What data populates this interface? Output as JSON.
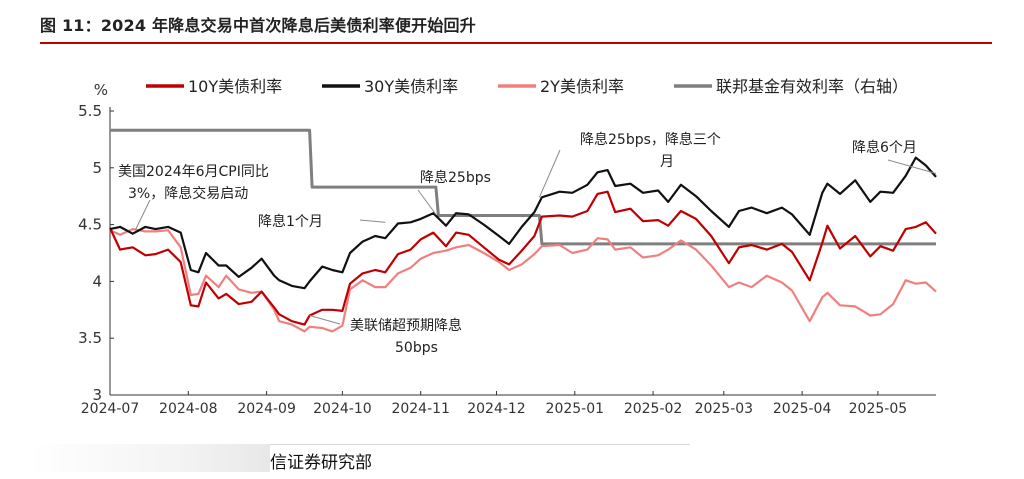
{
  "figure": {
    "title": "图 11：2024 年降息交易中首次降息后美债利率便开始回升",
    "source": "信证券研究部"
  },
  "chart_data": {
    "type": "line",
    "ylabel": "%",
    "ylim": [
      3,
      5.5
    ],
    "yticks": [
      "3",
      "3.5",
      "4",
      "4.5",
      "5",
      "5.5"
    ],
    "xlim": [
      "2024-07-01",
      "2025-05-24"
    ],
    "xticks": [
      "2024-07",
      "2024-08",
      "2024-09",
      "2024-10",
      "2024-11",
      "2024-12",
      "2025-01",
      "2025-02",
      "2025-03",
      "2025-04",
      "2025-05"
    ],
    "colors": {
      "10Y": "#c00000",
      "30Y": "#111111",
      "2Y": "#f08080",
      "fed": "#7f7f7f"
    },
    "series": [
      {
        "name": "10Y美债利率",
        "key": "10Y",
        "points": [
          [
            "2024-07-01",
            4.47
          ],
          [
            "2024-07-05",
            4.28
          ],
          [
            "2024-07-10",
            4.3
          ],
          [
            "2024-07-15",
            4.23
          ],
          [
            "2024-07-19",
            4.24
          ],
          [
            "2024-07-24",
            4.28
          ],
          [
            "2024-07-29",
            4.17
          ],
          [
            "2024-08-02",
            3.79
          ],
          [
            "2024-08-05",
            3.78
          ],
          [
            "2024-08-08",
            3.99
          ],
          [
            "2024-08-13",
            3.85
          ],
          [
            "2024-08-16",
            3.89
          ],
          [
            "2024-08-21",
            3.8
          ],
          [
            "2024-08-26",
            3.82
          ],
          [
            "2024-08-30",
            3.91
          ],
          [
            "2024-09-04",
            3.77
          ],
          [
            "2024-09-06",
            3.71
          ],
          [
            "2024-09-11",
            3.65
          ],
          [
            "2024-09-16",
            3.62
          ],
          [
            "2024-09-18",
            3.7
          ],
          [
            "2024-09-23",
            3.75
          ],
          [
            "2024-09-27",
            3.75
          ],
          [
            "2024-10-01",
            3.74
          ],
          [
            "2024-10-04",
            3.98
          ],
          [
            "2024-10-09",
            4.07
          ],
          [
            "2024-10-14",
            4.1
          ],
          [
            "2024-10-18",
            4.08
          ],
          [
            "2024-10-23",
            4.24
          ],
          [
            "2024-10-28",
            4.28
          ],
          [
            "2024-11-01",
            4.37
          ],
          [
            "2024-11-06",
            4.43
          ],
          [
            "2024-11-11",
            4.31
          ],
          [
            "2024-11-15",
            4.43
          ],
          [
            "2024-11-20",
            4.41
          ],
          [
            "2024-11-26",
            4.3
          ],
          [
            "2024-12-02",
            4.19
          ],
          [
            "2024-12-06",
            4.15
          ],
          [
            "2024-12-11",
            4.27
          ],
          [
            "2024-12-16",
            4.4
          ],
          [
            "2024-12-19",
            4.57
          ],
          [
            "2024-12-26",
            4.58
          ],
          [
            "2024-12-31",
            4.57
          ],
          [
            "2025-01-06",
            4.62
          ],
          [
            "2025-01-10",
            4.77
          ],
          [
            "2025-01-14",
            4.79
          ],
          [
            "2025-01-17",
            4.61
          ],
          [
            "2025-01-23",
            4.64
          ],
          [
            "2025-01-28",
            4.53
          ],
          [
            "2025-02-03",
            4.54
          ],
          [
            "2025-02-07",
            4.49
          ],
          [
            "2025-02-12",
            4.62
          ],
          [
            "2025-02-18",
            4.55
          ],
          [
            "2025-02-24",
            4.4
          ],
          [
            "2025-03-03",
            4.16
          ],
          [
            "2025-03-07",
            4.3
          ],
          [
            "2025-03-12",
            4.32
          ],
          [
            "2025-03-18",
            4.28
          ],
          [
            "2025-03-24",
            4.33
          ],
          [
            "2025-03-28",
            4.26
          ],
          [
            "2025-04-04",
            4.01
          ],
          [
            "2025-04-09",
            4.34
          ],
          [
            "2025-04-11",
            4.49
          ],
          [
            "2025-04-16",
            4.29
          ],
          [
            "2025-04-22",
            4.4
          ],
          [
            "2025-04-28",
            4.22
          ],
          [
            "2025-05-02",
            4.31
          ],
          [
            "2025-05-07",
            4.27
          ],
          [
            "2025-05-12",
            4.46
          ],
          [
            "2025-05-16",
            4.48
          ],
          [
            "2025-05-20",
            4.52
          ],
          [
            "2025-05-24",
            4.42
          ]
        ]
      },
      {
        "name": "30Y美债利率",
        "key": "30Y",
        "points": [
          [
            "2024-07-01",
            4.46
          ],
          [
            "2024-07-05",
            4.48
          ],
          [
            "2024-07-10",
            4.42
          ],
          [
            "2024-07-15",
            4.48
          ],
          [
            "2024-07-19",
            4.46
          ],
          [
            "2024-07-24",
            4.48
          ],
          [
            "2024-07-29",
            4.43
          ],
          [
            "2024-08-02",
            4.1
          ],
          [
            "2024-08-05",
            4.08
          ],
          [
            "2024-08-08",
            4.25
          ],
          [
            "2024-08-13",
            4.14
          ],
          [
            "2024-08-16",
            4.14
          ],
          [
            "2024-08-21",
            4.04
          ],
          [
            "2024-08-26",
            4.12
          ],
          [
            "2024-08-30",
            4.2
          ],
          [
            "2024-09-04",
            4.05
          ],
          [
            "2024-09-06",
            4.01
          ],
          [
            "2024-09-11",
            3.96
          ],
          [
            "2024-09-16",
            3.94
          ],
          [
            "2024-09-18",
            4.0
          ],
          [
            "2024-09-23",
            4.13
          ],
          [
            "2024-09-27",
            4.1
          ],
          [
            "2024-10-01",
            4.08
          ],
          [
            "2024-10-04",
            4.25
          ],
          [
            "2024-10-09",
            4.35
          ],
          [
            "2024-10-14",
            4.4
          ],
          [
            "2024-10-18",
            4.38
          ],
          [
            "2024-10-23",
            4.51
          ],
          [
            "2024-10-28",
            4.52
          ],
          [
            "2024-11-01",
            4.55
          ],
          [
            "2024-11-06",
            4.6
          ],
          [
            "2024-11-11",
            4.49
          ],
          [
            "2024-11-15",
            4.6
          ],
          [
            "2024-11-20",
            4.59
          ],
          [
            "2024-11-26",
            4.5
          ],
          [
            "2024-12-02",
            4.4
          ],
          [
            "2024-12-06",
            4.33
          ],
          [
            "2024-12-11",
            4.48
          ],
          [
            "2024-12-16",
            4.61
          ],
          [
            "2024-12-19",
            4.74
          ],
          [
            "2024-12-26",
            4.79
          ],
          [
            "2024-12-31",
            4.78
          ],
          [
            "2025-01-06",
            4.85
          ],
          [
            "2025-01-10",
            4.96
          ],
          [
            "2025-01-14",
            4.98
          ],
          [
            "2025-01-17",
            4.84
          ],
          [
            "2025-01-23",
            4.86
          ],
          [
            "2025-01-28",
            4.78
          ],
          [
            "2025-02-03",
            4.8
          ],
          [
            "2025-02-07",
            4.7
          ],
          [
            "2025-02-12",
            4.85
          ],
          [
            "2025-02-18",
            4.75
          ],
          [
            "2025-02-24",
            4.62
          ],
          [
            "2025-03-03",
            4.48
          ],
          [
            "2025-03-07",
            4.62
          ],
          [
            "2025-03-12",
            4.65
          ],
          [
            "2025-03-18",
            4.6
          ],
          [
            "2025-03-24",
            4.65
          ],
          [
            "2025-03-28",
            4.59
          ],
          [
            "2025-04-04",
            4.41
          ],
          [
            "2025-04-09",
            4.78
          ],
          [
            "2025-04-11",
            4.86
          ],
          [
            "2025-04-16",
            4.77
          ],
          [
            "2025-04-22",
            4.89
          ],
          [
            "2025-04-28",
            4.7
          ],
          [
            "2025-05-02",
            4.79
          ],
          [
            "2025-05-07",
            4.78
          ],
          [
            "2025-05-12",
            4.93
          ],
          [
            "2025-05-16",
            5.09
          ],
          [
            "2025-05-20",
            5.02
          ],
          [
            "2025-05-24",
            4.92
          ]
        ]
      },
      {
        "name": "2Y美债利率",
        "key": "2Y",
        "points": [
          [
            "2024-07-01",
            4.45
          ],
          [
            "2024-07-05",
            4.41
          ],
          [
            "2024-07-10",
            4.46
          ],
          [
            "2024-07-15",
            4.44
          ],
          [
            "2024-07-19",
            4.44
          ],
          [
            "2024-07-24",
            4.45
          ],
          [
            "2024-07-29",
            4.3
          ],
          [
            "2024-08-02",
            3.88
          ],
          [
            "2024-08-05",
            3.89
          ],
          [
            "2024-08-08",
            4.05
          ],
          [
            "2024-08-13",
            3.95
          ],
          [
            "2024-08-16",
            4.05
          ],
          [
            "2024-08-21",
            3.93
          ],
          [
            "2024-08-26",
            3.9
          ],
          [
            "2024-08-30",
            3.91
          ],
          [
            "2024-09-04",
            3.75
          ],
          [
            "2024-09-06",
            3.65
          ],
          [
            "2024-09-11",
            3.62
          ],
          [
            "2024-09-16",
            3.56
          ],
          [
            "2024-09-18",
            3.6
          ],
          [
            "2024-09-23",
            3.59
          ],
          [
            "2024-09-27",
            3.56
          ],
          [
            "2024-10-01",
            3.61
          ],
          [
            "2024-10-04",
            3.93
          ],
          [
            "2024-10-09",
            4.01
          ],
          [
            "2024-10-14",
            3.95
          ],
          [
            "2024-10-18",
            3.95
          ],
          [
            "2024-10-23",
            4.07
          ],
          [
            "2024-10-28",
            4.12
          ],
          [
            "2024-11-01",
            4.2
          ],
          [
            "2024-11-06",
            4.25
          ],
          [
            "2024-11-11",
            4.27
          ],
          [
            "2024-11-15",
            4.3
          ],
          [
            "2024-11-20",
            4.32
          ],
          [
            "2024-11-26",
            4.25
          ],
          [
            "2024-12-02",
            4.17
          ],
          [
            "2024-12-06",
            4.1
          ],
          [
            "2024-12-11",
            4.15
          ],
          [
            "2024-12-16",
            4.24
          ],
          [
            "2024-12-19",
            4.31
          ],
          [
            "2024-12-26",
            4.32
          ],
          [
            "2024-12-31",
            4.25
          ],
          [
            "2025-01-06",
            4.28
          ],
          [
            "2025-01-10",
            4.38
          ],
          [
            "2025-01-14",
            4.37
          ],
          [
            "2025-01-17",
            4.28
          ],
          [
            "2025-01-23",
            4.3
          ],
          [
            "2025-01-28",
            4.21
          ],
          [
            "2025-02-03",
            4.23
          ],
          [
            "2025-02-07",
            4.28
          ],
          [
            "2025-02-12",
            4.36
          ],
          [
            "2025-02-18",
            4.28
          ],
          [
            "2025-02-24",
            4.14
          ],
          [
            "2025-03-03",
            3.95
          ],
          [
            "2025-03-07",
            3.99
          ],
          [
            "2025-03-12",
            3.95
          ],
          [
            "2025-03-18",
            4.05
          ],
          [
            "2025-03-24",
            3.99
          ],
          [
            "2025-03-28",
            3.92
          ],
          [
            "2025-04-04",
            3.65
          ],
          [
            "2025-04-09",
            3.86
          ],
          [
            "2025-04-11",
            3.9
          ],
          [
            "2025-04-16",
            3.79
          ],
          [
            "2025-04-22",
            3.78
          ],
          [
            "2025-04-28",
            3.7
          ],
          [
            "2025-05-02",
            3.71
          ],
          [
            "2025-05-07",
            3.8
          ],
          [
            "2025-05-12",
            4.01
          ],
          [
            "2025-05-16",
            3.98
          ],
          [
            "2025-05-20",
            3.99
          ],
          [
            "2025-05-24",
            3.91
          ]
        ]
      },
      {
        "name": "联邦基金有效利率（右轴）",
        "key": "fed",
        "step": true,
        "points": [
          [
            "2024-07-01",
            5.33
          ],
          [
            "2024-09-18",
            5.33
          ],
          [
            "2024-09-19",
            4.83
          ],
          [
            "2024-11-07",
            4.83
          ],
          [
            "2024-11-08",
            4.58
          ],
          [
            "2024-12-18",
            4.58
          ],
          [
            "2024-12-19",
            4.33
          ],
          [
            "2025-05-24",
            4.33
          ]
        ]
      }
    ],
    "annotations": [
      {
        "id": "cpi",
        "lines": [
          "美国2024年6月CPI同比",
          "3%，降息交易启动"
        ],
        "target": [
          "2024-07-11",
          4.45
        ]
      },
      {
        "id": "cut50",
        "lines": [
          "美联储超预期降息",
          "50bps"
        ],
        "target": [
          "2024-09-18",
          3.7
        ]
      },
      {
        "id": "month1",
        "lines": [
          "降息1个月"
        ],
        "target": [
          "2024-10-18",
          4.52
        ]
      },
      {
        "id": "cut25a",
        "lines": [
          "降息25bps"
        ],
        "target": [
          "2024-11-07",
          4.59
        ]
      },
      {
        "id": "cut25b",
        "lines": [
          "降息25bps，降息三个",
          "月"
        ],
        "target": [
          "2024-12-18",
          4.74
        ]
      },
      {
        "id": "month6",
        "lines": [
          "降息6个月"
        ],
        "target": [
          "2025-05-24",
          4.95
        ]
      }
    ]
  }
}
